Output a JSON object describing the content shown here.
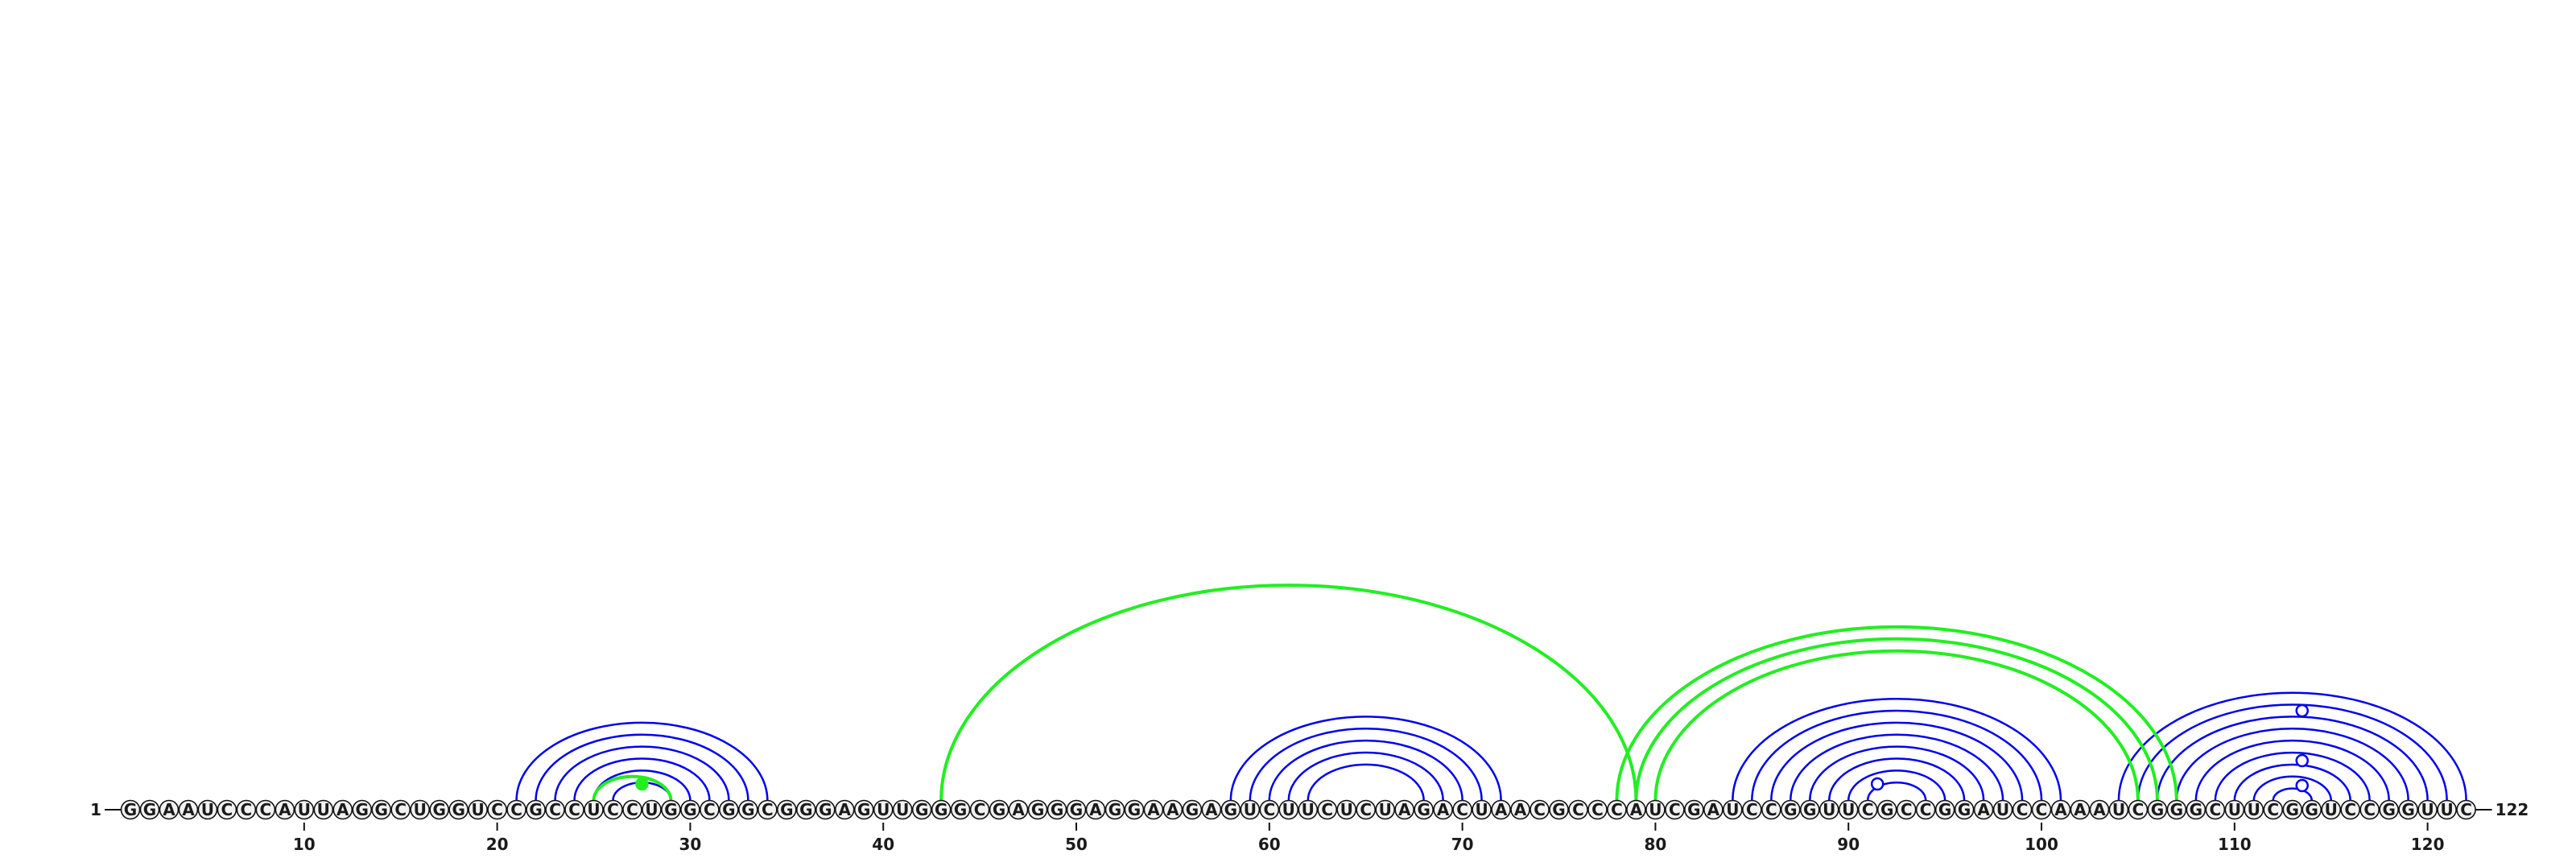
{
  "sequence": "GGAAUCCCAUUAGGCUGGUCCGCCUCCUGGCGGCGGGAGUUGGGCGAGGGAGGAAGAGUCUUCUCUAGACUAACGCCCAUCGAUCCGGUUCGCCGGAUCCAAAUCGGGCUUCGGUCCGGUUC",
  "start_label": "1",
  "end_label": "122",
  "tick_labels": [
    "10",
    "20",
    "30",
    "40",
    "50",
    "60",
    "70",
    "80",
    "90",
    "100",
    "110",
    "120"
  ],
  "colors": {
    "pair_arc": "#0000ee",
    "pseudoknot_arc": "#22ee22",
    "nucleotide_fill": "#f2f2f2",
    "nucleotide_stroke": "#111111",
    "text": "#1a1a1a"
  },
  "helices": [
    {
      "type": "pair",
      "i": 21,
      "j": 34,
      "n": 6
    },
    {
      "type": "pair",
      "i": 58,
      "j": 72,
      "n": 5
    },
    {
      "type": "pair",
      "i": 84,
      "j": 101,
      "n": 8
    },
    {
      "type": "pair",
      "i": 104,
      "j": 122,
      "n": 10
    },
    {
      "type": "pseudoknot",
      "i": 25,
      "j": 29,
      "n": 1
    },
    {
      "type": "pseudoknot",
      "i": 43,
      "j": 79,
      "n": 1
    },
    {
      "type": "pseudoknot",
      "i": 78,
      "j": 107,
      "n": 3
    }
  ],
  "markers": [
    {
      "type": "filled",
      "pos": 27.5,
      "arc_type": "pseudoknot"
    },
    {
      "type": "open",
      "pos": 91.5
    },
    {
      "type": "open",
      "pos": 113.5,
      "level": 1
    },
    {
      "type": "open",
      "pos": 113.5,
      "level": 3
    },
    {
      "type": "open",
      "pos": 113.5,
      "level": 6
    }
  ]
}
